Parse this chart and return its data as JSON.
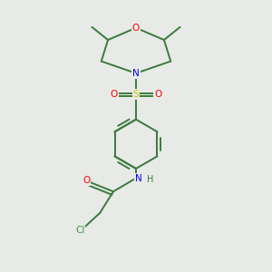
{
  "background_color": "#e8eae8",
  "bond_color": "#3a7a3a",
  "atom_colors": {
    "O": "#ff0000",
    "N": "#0000ee",
    "S": "#cccc00",
    "Cl": "#3a9a3a",
    "C": "#3a7a3a",
    "H": "#3a7a3a"
  },
  "figsize": [
    3.0,
    3.0
  ],
  "dpi": 100
}
